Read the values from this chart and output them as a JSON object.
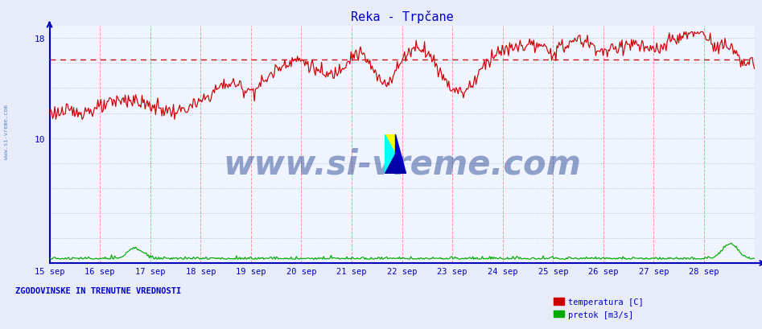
{
  "title": "Reka - Trpčane",
  "title_color": "#0000cc",
  "bg_color": "#e8ecf8",
  "plot_bg_color": "#f0f4ff",
  "x_labels": [
    "15 sep",
    "16 sep",
    "17 sep",
    "18 sep",
    "19 sep",
    "20 sep",
    "21 sep",
    "22 sep",
    "23 sep",
    "24 sep",
    "25 sep",
    "26 sep",
    "27 sep",
    "28 sep"
  ],
  "y_min": 0,
  "y_max": 19,
  "avg_line_y": 16.3,
  "avg_line_color": "#cc0000",
  "temp_line_color": "#cc0000",
  "flow_line_color": "#00aa00",
  "axis_color": "#0000bb",
  "watermark_text": "www.si-vreme.com",
  "watermark_color": "#1a3a8a",
  "watermark_alpha": 0.45,
  "sidebar_text": "www.si-vreme.com",
  "sidebar_color": "#4477cc",
  "footer_text": "ZGODOVINSKE IN TRENUTNE VREDNOSTI",
  "footer_color": "#0000cc",
  "legend_temp": "temperatura [C]",
  "legend_flow": "pretok [m3/s]",
  "legend_color": "#0000cc",
  "vgrid_color": "#ff8888",
  "hgrid_color": "#aaaacc",
  "n_points": 672
}
